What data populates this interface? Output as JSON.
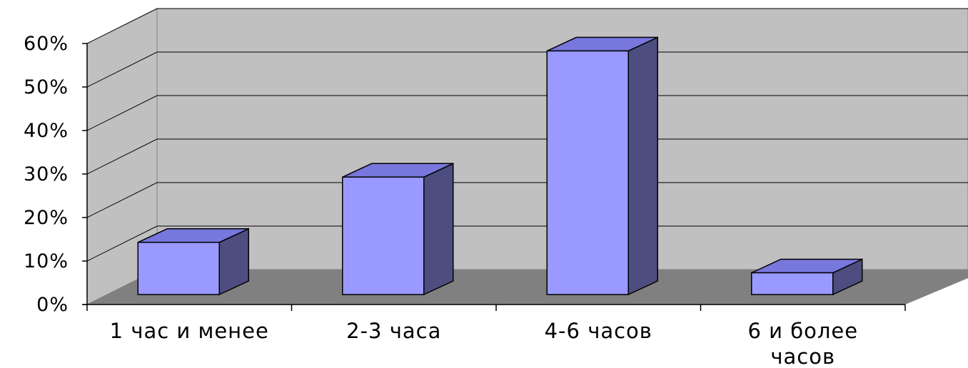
{
  "chart_data": {
    "type": "bar",
    "categories": [
      "1 час и менее",
      "2-3 часа",
      "4-6 часов",
      "6 и более часов"
    ],
    "category_lines": [
      [
        "1 час и менее"
      ],
      [
        "2-3 часа"
      ],
      [
        "4-6 часов"
      ],
      [
        "6 и более",
        "часов"
      ]
    ],
    "values": [
      12,
      27,
      56,
      5
    ],
    "unit": "%",
    "ylim": [
      0,
      60
    ],
    "yticks": [
      "0%",
      "10%",
      "20%",
      "30%",
      "40%",
      "50%",
      "60%"
    ],
    "grid": true,
    "title": "",
    "xlabel": "",
    "ylabel": "",
    "colors": {
      "bar_front": "#9999FF",
      "bar_top": "#7777DD",
      "bar_side": "#4D4D80",
      "back_wall": "#C0C0C0",
      "side_wall": "#C0C0C0",
      "floor": "#808080",
      "grid": "#000000"
    }
  }
}
